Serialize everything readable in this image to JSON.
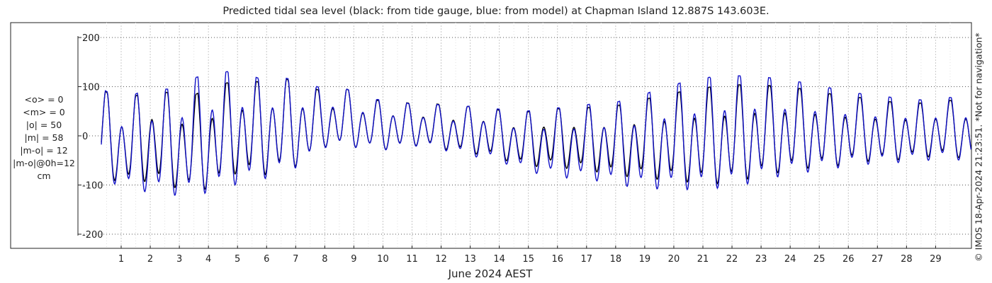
{
  "chart_data": {
    "type": "line",
    "title": "Predicted tidal sea level (black: from tide gauge, blue: from model) at Chapman Island 12.887S 143.603E.",
    "xlabel": "June 2024 AEST",
    "ylabel": "",
    "xlim": [
      0,
      30
    ],
    "ylim": [
      -230,
      210
    ],
    "y_ticks": [
      200,
      100,
      0,
      -100,
      -200
    ],
    "y_tick_labels": [
      "200",
      "100",
      "0",
      "-100",
      "-200"
    ],
    "x_ticks": [
      1,
      2,
      3,
      4,
      5,
      6,
      7,
      8,
      9,
      10,
      11,
      12,
      13,
      14,
      15,
      16,
      17,
      18,
      19,
      20,
      21,
      22,
      23,
      24,
      25,
      26,
      27,
      28,
      29
    ],
    "x_tick_labels": [
      "1",
      "2",
      "3",
      "4",
      "5",
      "6",
      "7",
      "8",
      "9",
      "10",
      "11",
      "12",
      "13",
      "14",
      "15",
      "16",
      "17",
      "18",
      "19",
      "20",
      "21",
      "22",
      "23",
      "24",
      "25",
      "26",
      "27",
      "28",
      "29"
    ],
    "grid": true,
    "amplitude_units": "cm",
    "series": [
      {
        "name": "from tide gauge",
        "color": "#000000",
        "daily_peaks": [
          95,
          68,
          92,
          88,
          80,
          100,
          112,
          110,
          118,
          107,
          88,
          95,
          72,
          72,
          65,
          65,
          58,
          62,
          50,
          48,
          55,
          55,
          58,
          60,
          72,
          80,
          90,
          98,
          102,
          105,
          102,
          98,
          92,
          82,
          78,
          70,
          68,
          66,
          72,
          70
        ],
        "daily_troughs": [
          -90,
          -110,
          -105,
          -115,
          -125,
          -120,
          -90,
          -95,
          -85,
          -70,
          -30,
          -30,
          -32,
          -35,
          -25,
          -30,
          -38,
          -45,
          -55,
          -70,
          -70,
          -75,
          -80,
          -90,
          -95,
          -100,
          -105,
          -110,
          -110,
          -100,
          -90,
          -80,
          -75,
          -70,
          -60,
          -60,
          -55,
          -50,
          -50,
          -55
        ]
      },
      {
        "name": "from model",
        "color": "#1414c8",
        "daily_peaks": [
          96,
          72,
          96,
          95,
          116,
          128,
          132,
          118,
          120,
          110,
          95,
          95,
          75,
          72,
          64,
          64,
          57,
          64,
          52,
          50,
          56,
          58,
          65,
          68,
          78,
          96,
          108,
          118,
          122,
          122,
          118,
          112,
          104,
          94,
          86,
          80,
          76,
          72,
          78,
          75
        ],
        "daily_troughs": [
          -98,
          -118,
          -128,
          -135,
          -138,
          -130,
          -115,
          -106,
          -90,
          -72,
          -32,
          -30,
          -33,
          -36,
          -26,
          -32,
          -42,
          -52,
          -62,
          -80,
          -90,
          -96,
          -100,
          -110,
          -118,
          -122,
          -124,
          -124,
          -120,
          -112,
          -100,
          -90,
          -84,
          -76,
          -68,
          -66,
          -62,
          -58,
          -56,
          -60
        ]
      }
    ]
  },
  "stats": {
    "mean_obs": "<o> = 0",
    "mean_model": "<m> = 0",
    "abs_obs": "|o| = 50",
    "abs_model": "|m| = 58",
    "abs_diff": "|m-o| = 12",
    "abs_diff_0h": "|m-o|@0h=12",
    "units": "cm"
  },
  "credit": "© IMOS 18-Apr-2024 21:23:51. *Not for navigation*"
}
